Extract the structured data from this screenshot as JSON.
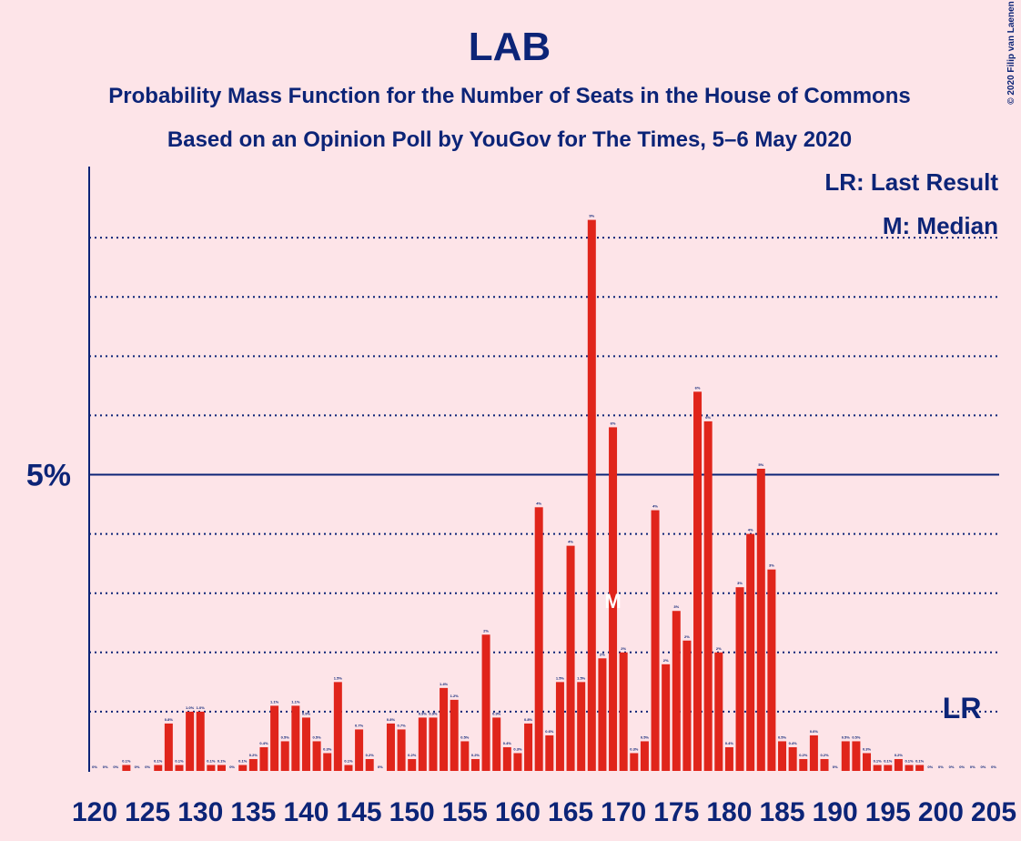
{
  "chart_data": {
    "type": "bar",
    "title": "LAB",
    "subtitle": [
      "Probability Mass Function for the Number of Seats in the House of Commons",
      "Based on an Opinion Poll by YouGov for The Times, 5–6 May 2020"
    ],
    "credit": "© 2020 Filip van Laenen",
    "legend": [
      "LR: Last Result",
      "M: Median"
    ],
    "annotations": [
      {
        "text": "M",
        "x": 169
      },
      {
        "text": "LR",
        "x": 202
      }
    ],
    "color": "#e0251b",
    "categories": [
      120,
      121,
      122,
      123,
      124,
      125,
      126,
      127,
      128,
      129,
      130,
      131,
      132,
      133,
      134,
      135,
      136,
      137,
      138,
      139,
      140,
      141,
      142,
      143,
      144,
      145,
      146,
      147,
      148,
      149,
      150,
      151,
      152,
      153,
      154,
      155,
      156,
      157,
      158,
      159,
      160,
      161,
      162,
      163,
      164,
      165,
      166,
      167,
      168,
      169,
      170,
      171,
      172,
      173,
      174,
      175,
      176,
      177,
      178,
      179,
      180,
      181,
      182,
      183,
      184,
      185,
      186,
      187,
      188,
      189,
      190,
      191,
      192,
      193,
      194,
      195,
      196,
      197,
      198,
      199,
      200,
      201,
      202,
      203,
      204,
      205
    ],
    "values": [
      0,
      0,
      0,
      0.1,
      0,
      0,
      0.1,
      0.8,
      0.1,
      1.0,
      1.0,
      0.1,
      0.1,
      0,
      0.1,
      0.2,
      0.4,
      1.1,
      0.5,
      1.1,
      0.9,
      0.5,
      0.3,
      1.5,
      0.1,
      0.7,
      0.2,
      0,
      0.8,
      0.7,
      0.2,
      0.9,
      0.9,
      1.4,
      1.2,
      0.5,
      0.2,
      2.3,
      0.9,
      0.4,
      0.3,
      0.8,
      4.45,
      0.6,
      1.5,
      3.8,
      1.5,
      9.3,
      1.9,
      5.8,
      2.0,
      0.3,
      0.5,
      4.4,
      1.8,
      2.7,
      2.2,
      6.4,
      5.9,
      2.0,
      0.4,
      3.1,
      4.0,
      5.1,
      3.4,
      0.5,
      0.4,
      0.2,
      0.6,
      0.2,
      0,
      0.5,
      0.5,
      0.3,
      0.1,
      0.1,
      0.2,
      0.1,
      0.1,
      0,
      0,
      0,
      0,
      0,
      0,
      0
    ],
    "value_labels": [
      "0%",
      "0%",
      "0%",
      "0.1%",
      "0%",
      "0%",
      "0.1%",
      "0.8%",
      "0.1%",
      "1.0%",
      "1.0%",
      "0.1%",
      "0.1%",
      "0%",
      "0.1%",
      "0.2%",
      "0.4%",
      "1.1%",
      "0.5%",
      "1.1%",
      "0.9%",
      "0.5%",
      "0.3%",
      "1.5%",
      "0.1%",
      "0.7%",
      "0.2%",
      "0%",
      "0.8%",
      "0.7%",
      "0.2%",
      "0.9%",
      "0.9%",
      "1.4%",
      "1.2%",
      "0.5%",
      "0.2%",
      "2%",
      "0.9%",
      "0.4%",
      "0.3%",
      "0.8%",
      "4%",
      "0.6%",
      "1.5%",
      "4%",
      "1.5%",
      "9%",
      "2%",
      "6%",
      "2%",
      "0.3%",
      "0.5%",
      "4%",
      "2%",
      "3%",
      "2%",
      "6%",
      "6%",
      "2%",
      "0.4%",
      "3%",
      "4%",
      "5%",
      "3%",
      "0.5%",
      "0.4%",
      "0.2%",
      "0.6%",
      "0.2%",
      "0%",
      "0.5%",
      "0.5%",
      "0.3%",
      "0.1%",
      "0.1%",
      "0.2%",
      "0.1%",
      "0.1%",
      "0%",
      "0%",
      "0%",
      "0%",
      "0%",
      "0%",
      "0%"
    ],
    "xticks": [
      120,
      125,
      130,
      135,
      140,
      145,
      150,
      155,
      160,
      165,
      170,
      175,
      180,
      185,
      190,
      195,
      200,
      205
    ],
    "ylim": [
      0,
      10.2
    ],
    "yticks": [
      {
        "value": 5,
        "label": "5%"
      }
    ],
    "minor_yticks": [
      1,
      2,
      3,
      4,
      6,
      7,
      8,
      9
    ],
    "grid": true
  }
}
